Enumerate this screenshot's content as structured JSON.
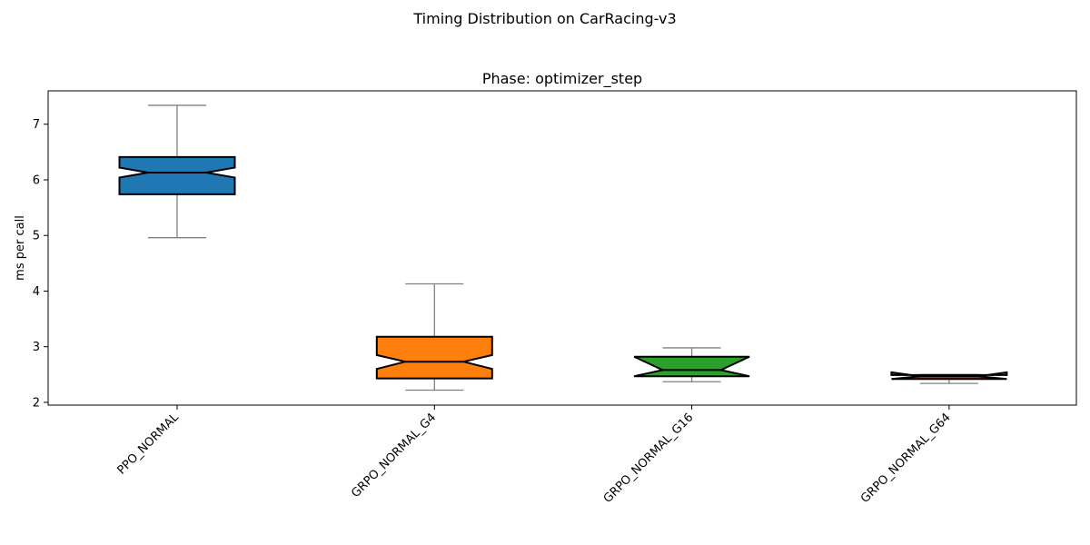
{
  "figure": {
    "suptitle": "Timing Distribution on CarRacing-v3"
  },
  "chart_data": {
    "type": "boxplot",
    "title": "Phase: optimizer_step",
    "xlabel": "",
    "ylabel": "ms per call",
    "ylim": [
      1.95,
      7.6
    ],
    "yticks": [
      2,
      3,
      4,
      5,
      6,
      7
    ],
    "notched": true,
    "grid": false,
    "categories": [
      "PPO_NORMAL",
      "GRPO_NORMAL_G4",
      "GRPO_NORMAL_G16",
      "GRPO_NORMAL_G64"
    ],
    "series": [
      {
        "category": "PPO_NORMAL",
        "color": "#1f77b4",
        "whisker_low": 4.96,
        "q1": 5.74,
        "median": 6.13,
        "q3": 6.41,
        "whisker_high": 7.34,
        "notch_low": 6.04,
        "notch_high": 6.22
      },
      {
        "category": "GRPO_NORMAL_G4",
        "color": "#ff7f0e",
        "whisker_low": 2.22,
        "q1": 2.43,
        "median": 2.73,
        "q3": 3.18,
        "whisker_high": 4.13,
        "notch_low": 2.6,
        "notch_high": 2.85
      },
      {
        "category": "GRPO_NORMAL_G16",
        "color": "#2ca02c",
        "whisker_low": 2.37,
        "q1": 2.47,
        "median": 2.58,
        "q3": 2.82,
        "whisker_high": 2.98,
        "notch_low": 2.47,
        "notch_high": 2.82
      },
      {
        "category": "GRPO_NORMAL_G64",
        "color": "#d62728",
        "whisker_low": 2.34,
        "q1": 2.42,
        "median": 2.47,
        "q3": 2.49,
        "whisker_high": 2.5,
        "notch_low": 2.42,
        "notch_high": 2.54
      }
    ]
  }
}
